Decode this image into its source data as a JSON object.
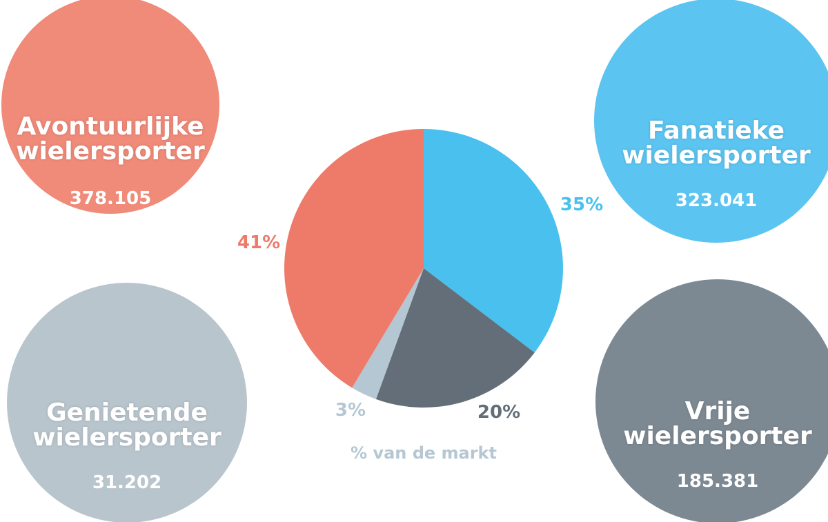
{
  "chart_data": {
    "type": "pie",
    "categories": [
      "Fanatieke wielersporter",
      "Vrije wielersporter",
      "Genietende wielersporter",
      "Avontuurlijke wielersporter"
    ],
    "values": [
      35,
      20,
      3,
      41
    ],
    "value_labels": [
      "35%",
      "20%",
      "3%",
      "41%"
    ],
    "colors": [
      "#4ac0ee",
      "#636e78",
      "#b5c7d3",
      "#ee7b6a"
    ],
    "circle_colors": [
      "#5cc4f0",
      "#7d8992",
      "#b9c5cd",
      "#f08a79"
    ],
    "counts": [
      {
        "value": 323041,
        "label": "323.041"
      },
      {
        "value": 185381,
        "label": "185.381"
      },
      {
        "value": 31202,
        "label": "31.202"
      },
      {
        "value": 378105,
        "label": "378.105"
      }
    ],
    "caption": "% van de markt"
  }
}
